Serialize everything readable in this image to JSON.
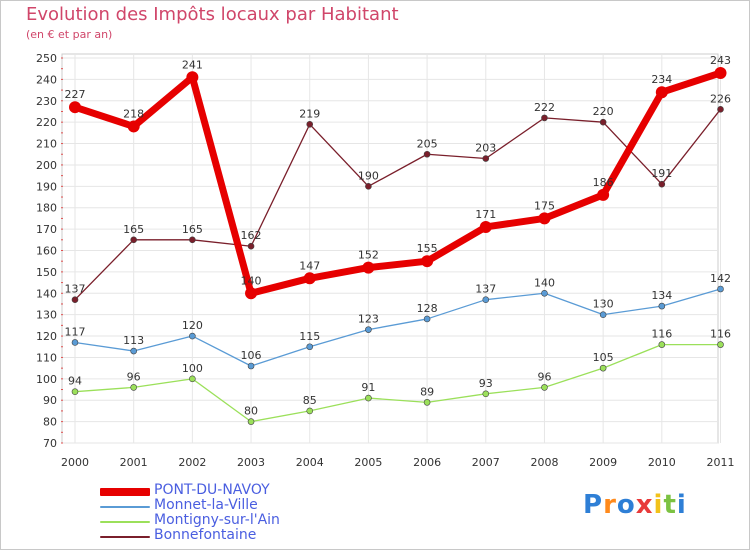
{
  "header": {
    "title": "Evolution des Impôts locaux par Habitant",
    "subtitle": "(en € et par an)"
  },
  "logo": {
    "letters": [
      "P",
      "r",
      "o",
      "x",
      "i",
      "t",
      "i"
    ],
    "colors": [
      "#2e7fd6",
      "#ff8a1c",
      "#2e7fd6",
      "#e83a3a",
      "#f2c21a",
      "#7cc242",
      "#2e7fd6"
    ]
  },
  "chart_data": {
    "type": "line",
    "title": "Evolution des Impôts locaux par Habitant",
    "subtitle": "(en € et par an)",
    "xlabel": "",
    "ylabel": "",
    "categories": [
      "2000",
      "2001",
      "2002",
      "2003",
      "2004",
      "2005",
      "2006",
      "2007",
      "2008",
      "2009",
      "2010",
      "2011"
    ],
    "ylim": [
      70,
      250
    ],
    "ytick_step": 10,
    "grid": true,
    "legend_position": "bottom-left",
    "series": [
      {
        "name": "PONT-DU-NAVOY",
        "color": "#e60000",
        "emphasis": true,
        "values": [
          227,
          218,
          241,
          140,
          147,
          152,
          155,
          171,
          175,
          186,
          234,
          243
        ]
      },
      {
        "name": "Monnet-la-Ville",
        "color": "#5a9bd5",
        "emphasis": false,
        "values": [
          117,
          113,
          120,
          106,
          115,
          123,
          128,
          137,
          140,
          130,
          134,
          142
        ]
      },
      {
        "name": "Montigny-sur-l'Ain",
        "color": "#9be05a",
        "emphasis": false,
        "values": [
          94,
          96,
          100,
          80,
          85,
          91,
          89,
          93,
          96,
          105,
          116,
          116
        ]
      },
      {
        "name": "Bonnefontaine",
        "color": "#7a1f2b",
        "emphasis": false,
        "values": [
          137,
          165,
          165,
          162,
          219,
          190,
          205,
          203,
          222,
          220,
          191,
          226
        ]
      }
    ]
  }
}
